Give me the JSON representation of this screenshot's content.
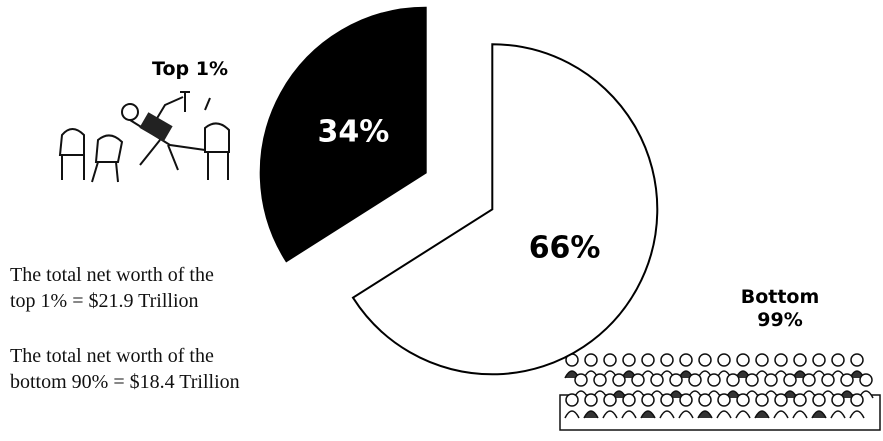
{
  "chart_data": {
    "type": "pie",
    "categories": [
      "Top 1%",
      "Bottom 99%"
    ],
    "values": [
      34,
      66
    ],
    "value_labels": [
      "34%",
      "66%"
    ],
    "colors": [
      "#000000",
      "#ffffff"
    ],
    "annotations": [
      [
        "The total net worth of the",
        "top 1% = $21.9 Trillion"
      ],
      [
        "The total net worth of the",
        "bottom 90% = $18.4 Trillion"
      ]
    ]
  }
}
